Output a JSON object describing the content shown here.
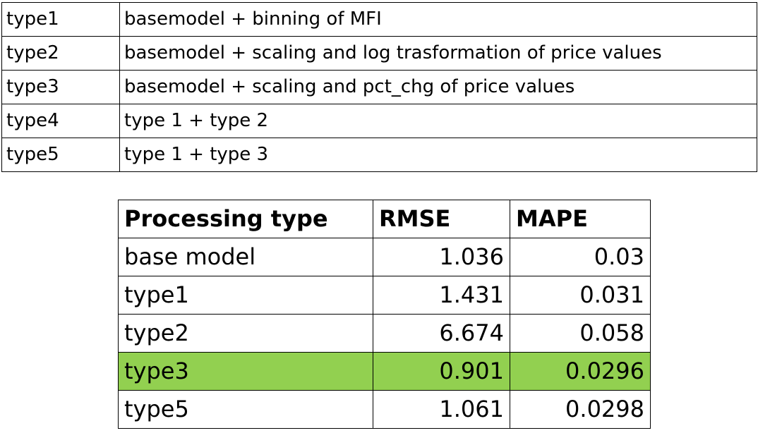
{
  "definitions": {
    "rows": [
      {
        "type": "type1",
        "description": "basemodel + binning of MFI"
      },
      {
        "type": "type2",
        "description": "basemodel + scaling and log trasformation of price values"
      },
      {
        "type": "type3",
        "description": "basemodel + scaling and pct_chg  of price values"
      },
      {
        "type": "type4",
        "description": "type 1 + type 2"
      },
      {
        "type": "type5",
        "description": "type 1 + type 3"
      }
    ]
  },
  "results": {
    "headers": [
      "Processing type",
      "RMSE",
      "MAPE"
    ],
    "highlight_color": "#92d050",
    "rows": [
      {
        "type": "base model",
        "rmse": "1.036",
        "mape": "0.03",
        "highlighted": false
      },
      {
        "type": "type1",
        "rmse": "1.431",
        "mape": "0.031",
        "highlighted": false
      },
      {
        "type": "type2",
        "rmse": "6.674",
        "mape": "0.058",
        "highlighted": false
      },
      {
        "type": "type3",
        "rmse": "0.901",
        "mape": "0.0296",
        "highlighted": true
      },
      {
        "type": "type5",
        "rmse": "1.061",
        "mape": "0.0298",
        "highlighted": false
      }
    ]
  }
}
